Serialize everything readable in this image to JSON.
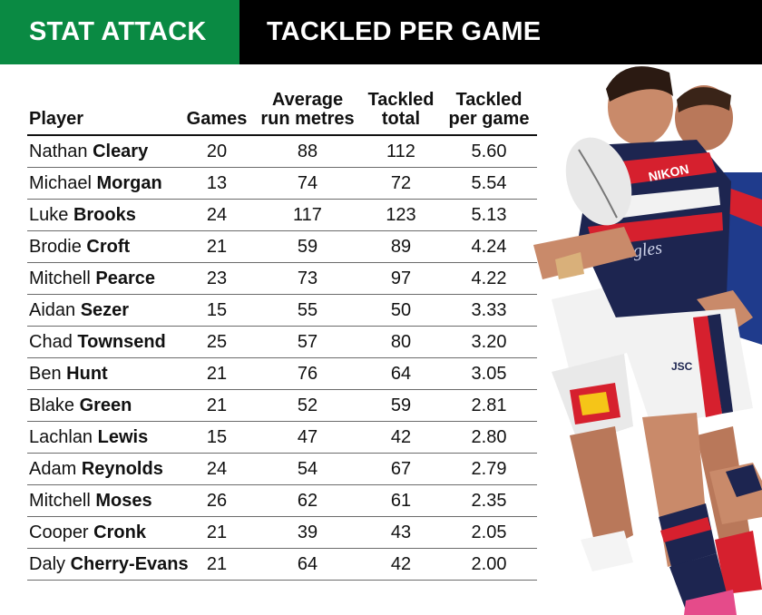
{
  "banner": {
    "left": "STAT ATTACK",
    "right": "TACKLED PER GAME"
  },
  "columns": {
    "player": "Player",
    "games": "Games",
    "run_line1": "Average",
    "run_line2": "run metres",
    "total_line1": "Tackled",
    "total_line2": "total",
    "ppg_line1": "Tackled",
    "ppg_line2": "per game"
  },
  "rows": [
    {
      "first": "Nathan",
      "last": "Cleary",
      "games": "20",
      "run": "88",
      "total": "112",
      "ppg": "5.60"
    },
    {
      "first": "Michael",
      "last": "Morgan",
      "games": "13",
      "run": "74",
      "total": "72",
      "ppg": "5.54"
    },
    {
      "first": "Luke",
      "last": "Brooks",
      "games": "24",
      "run": "117",
      "total": "123",
      "ppg": "5.13"
    },
    {
      "first": "Brodie",
      "last": "Croft",
      "games": "21",
      "run": "59",
      "total": "89",
      "ppg": "4.24"
    },
    {
      "first": "Mitchell",
      "last": "Pearce",
      "games": "23",
      "run": "73",
      "total": "97",
      "ppg": "4.22"
    },
    {
      "first": "Aidan",
      "last": "Sezer",
      "games": "15",
      "run": "55",
      "total": "50",
      "ppg": "3.33"
    },
    {
      "first": "Chad",
      "last": "Townsend",
      "games": "25",
      "run": "57",
      "total": "80",
      "ppg": "3.20"
    },
    {
      "first": "Ben",
      "last": "Hunt",
      "games": "21",
      "run": "76",
      "total": "64",
      "ppg": "3.05"
    },
    {
      "first": "Blake",
      "last": "Green",
      "games": "21",
      "run": "52",
      "total": "59",
      "ppg": "2.81"
    },
    {
      "first": "Lachlan",
      "last": "Lewis",
      "games": "15",
      "run": "47",
      "total": "42",
      "ppg": "2.80"
    },
    {
      "first": "Adam",
      "last": "Reynolds",
      "games": "24",
      "run": "54",
      "total": "67",
      "ppg": "2.79"
    },
    {
      "first": "Mitchell",
      "last": "Moses",
      "games": "26",
      "run": "62",
      "total": "61",
      "ppg": "2.35"
    },
    {
      "first": "Cooper",
      "last": "Cronk",
      "games": "21",
      "run": "39",
      "total": "43",
      "ppg": "2.05"
    },
    {
      "first": "Daly",
      "last": "Cherry-Evans",
      "games": "21",
      "run": "64",
      "total": "42",
      "ppg": "2.00"
    }
  ],
  "photo": {
    "jersey_text_1": "NIKON",
    "jersey_text_2": "eagles",
    "short_badge": "JSC",
    "colors": {
      "navy": "#1d2550",
      "red": "#d6202e",
      "skin": "#c98a6a",
      "white": "#f2f2f2"
    }
  }
}
